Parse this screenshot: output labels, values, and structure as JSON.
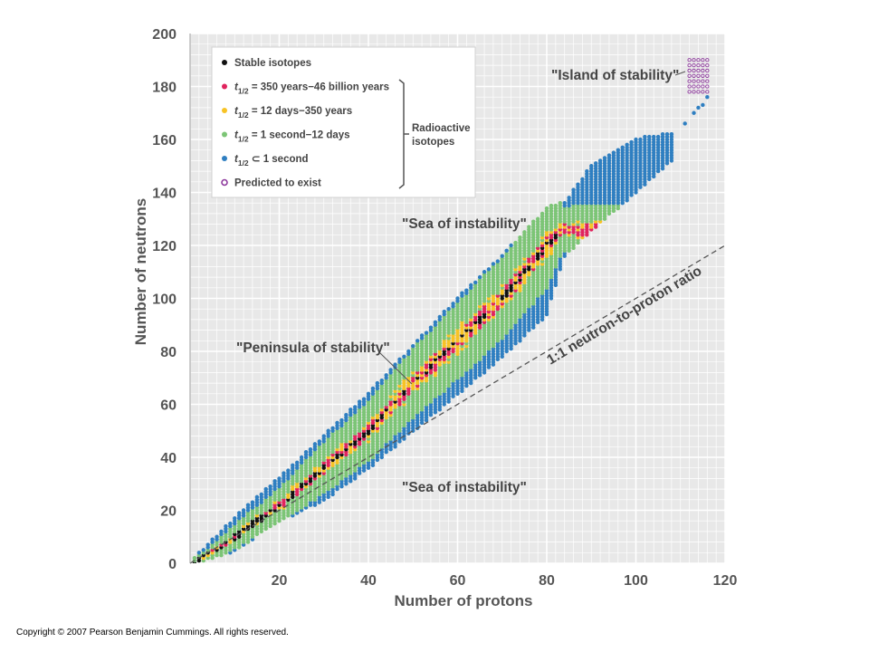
{
  "chart_data": {
    "type": "scatter",
    "xlabel": "Number of protons",
    "ylabel": "Number of neutrons",
    "xlim": [
      0,
      120
    ],
    "ylim": [
      0,
      200
    ],
    "x_ticks": [
      "20",
      "40",
      "60",
      "80",
      "100",
      "120"
    ],
    "y_ticks": [
      "0",
      "20",
      "40",
      "60",
      "80",
      "100",
      "120",
      "140",
      "160",
      "180",
      "200"
    ],
    "grid": true,
    "legend_position": "top-left",
    "legend": [
      {
        "label": "Stable isotopes",
        "color": "#111111",
        "marker": "filled"
      },
      {
        "label_main": "t",
        "label_sub": "1/2",
        "label_rest": " = 350 years−46 billion years",
        "color": "#e0245e",
        "marker": "filled"
      },
      {
        "label_main": "t",
        "label_sub": "1/2",
        "label_rest": " = 12 days−350 years",
        "color": "#f7c325",
        "marker": "filled"
      },
      {
        "label_main": "t",
        "label_sub": "1/2",
        "label_rest": " = 1 second−12 days",
        "color": "#7cc576",
        "marker": "filled"
      },
      {
        "label_main": "t",
        "label_sub": "1/2",
        "label_rest": " ⊂ 1 second",
        "color": "#2f7fc1",
        "marker": "filled"
      },
      {
        "label": "Predicted to exist",
        "color": "#8e3a9d",
        "marker": "open"
      }
    ],
    "legend_group_label": [
      "Radioactive",
      "isotopes"
    ],
    "annotations": {
      "island": "\"Island of stability\"",
      "sea_top": "\"Sea of instability\"",
      "peninsula": "\"Peninsula of stability\"",
      "ratio_line": "1:1 neutron-to-proton ratio",
      "sea_bottom": "\"Sea of instability\""
    },
    "reference_line": {
      "label": "1:1 neutron-to-proton ratio",
      "slope": 1,
      "style": "dashed"
    },
    "stable_band": [
      {
        "z": 1,
        "n": 0
      },
      {
        "z": 10,
        "n": 10
      },
      {
        "z": 20,
        "n": 22
      },
      {
        "z": 30,
        "n": 36
      },
      {
        "z": 40,
        "n": 50
      },
      {
        "z": 50,
        "n": 68
      },
      {
        "z": 60,
        "n": 84
      },
      {
        "z": 70,
        "n": 100
      },
      {
        "z": 80,
        "n": 120
      },
      {
        "z": 83,
        "n": 126
      }
    ],
    "band_upper_edge": [
      {
        "z": 1,
        "n": 2
      },
      {
        "z": 10,
        "n": 17
      },
      {
        "z": 20,
        "n": 32
      },
      {
        "z": 30,
        "n": 48
      },
      {
        "z": 40,
        "n": 64
      },
      {
        "z": 50,
        "n": 82
      },
      {
        "z": 60,
        "n": 100
      },
      {
        "z": 70,
        "n": 116
      },
      {
        "z": 80,
        "n": 134
      },
      {
        "z": 84,
        "n": 136
      },
      {
        "z": 90,
        "n": 150
      },
      {
        "z": 100,
        "n": 160
      },
      {
        "z": 108,
        "n": 162
      }
    ],
    "band_lower_edge": [
      {
        "z": 1,
        "n": 0
      },
      {
        "z": 10,
        "n": 5
      },
      {
        "z": 20,
        "n": 16
      },
      {
        "z": 30,
        "n": 24
      },
      {
        "z": 40,
        "n": 36
      },
      {
        "z": 50,
        "n": 50
      },
      {
        "z": 60,
        "n": 64
      },
      {
        "z": 70,
        "n": 78
      },
      {
        "z": 80,
        "n": 94
      },
      {
        "z": 84,
        "n": 116
      },
      {
        "z": 90,
        "n": 126
      },
      {
        "z": 100,
        "n": 140
      },
      {
        "z": 108,
        "n": 152
      }
    ],
    "scattered_superheavy": [
      {
        "z": 105,
        "n": 158
      },
      {
        "z": 108,
        "n": 162
      },
      {
        "z": 111,
        "n": 166
      },
      {
        "z": 113,
        "n": 170
      },
      {
        "z": 114,
        "n": 172
      },
      {
        "z": 115,
        "n": 173
      },
      {
        "z": 116,
        "n": 176
      }
    ],
    "island_predicted": {
      "z_range": [
        112,
        116
      ],
      "n_range": [
        178,
        190
      ]
    }
  },
  "copyright": "Copyright © 2007 Pearson Benjamin Cummings.  All rights reserved."
}
